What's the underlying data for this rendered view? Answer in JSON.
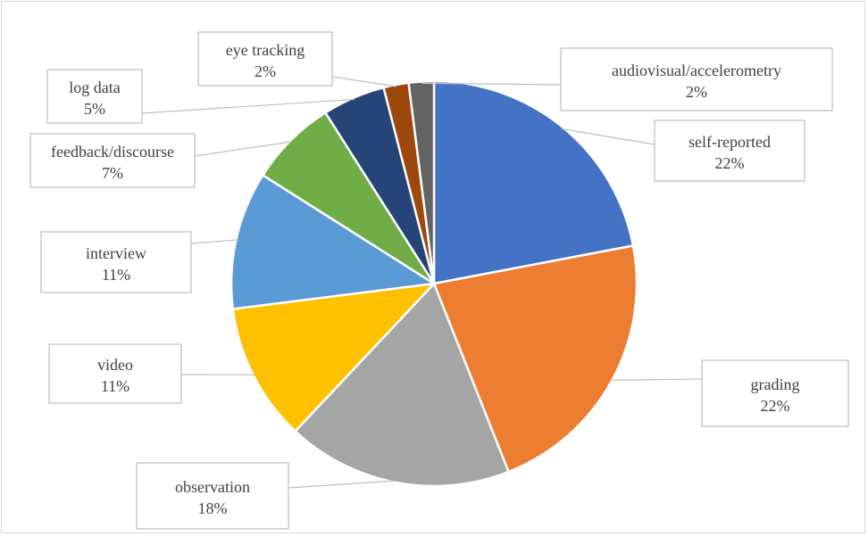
{
  "chart_data": {
    "type": "pie",
    "slices": [
      {
        "label": "self-reported",
        "value": 22,
        "percent_label": "22%",
        "color": "#4472C4"
      },
      {
        "label": "grading",
        "value": 22,
        "percent_label": "22%",
        "color": "#ED7D31"
      },
      {
        "label": "observation",
        "value": 18,
        "percent_label": "18%",
        "color": "#A5A5A5"
      },
      {
        "label": "video",
        "value": 11,
        "percent_label": "11%",
        "color": "#FFC000"
      },
      {
        "label": "interview",
        "value": 11,
        "percent_label": "11%",
        "color": "#5B9BD5"
      },
      {
        "label": "feedback/discourse",
        "value": 7,
        "percent_label": "7%",
        "color": "#70AD47"
      },
      {
        "label": "log data",
        "value": 5,
        "percent_label": "5%",
        "color": "#264478"
      },
      {
        "label": "eye tracking",
        "value": 2,
        "percent_label": "2%",
        "color": "#9E480E"
      },
      {
        "label": "audiovisual/accelerometry",
        "value": 2,
        "percent_label": "2%",
        "color": "#636363"
      }
    ],
    "data_labels": "callout boxes with leader lines",
    "legend": "none"
  }
}
